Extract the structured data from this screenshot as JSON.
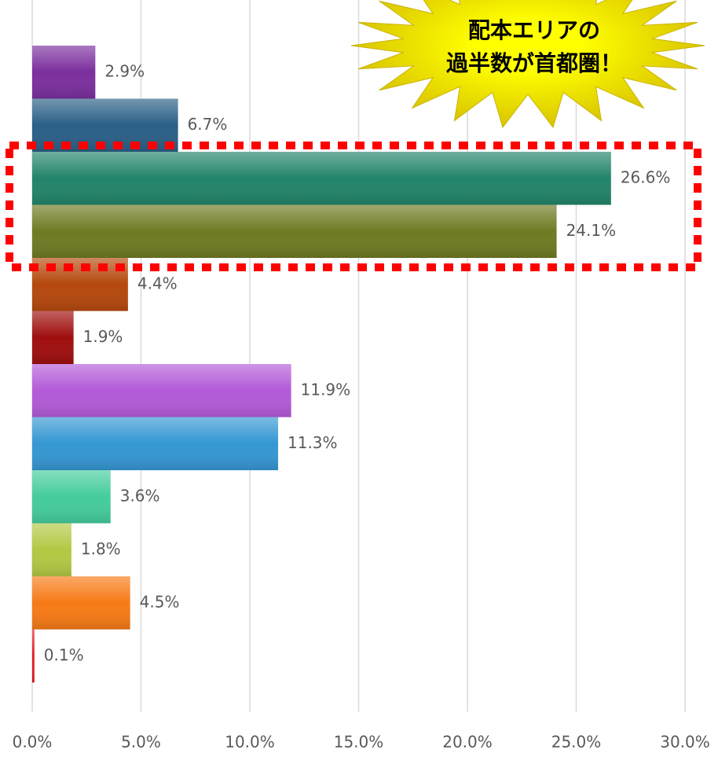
{
  "chart_data": {
    "type": "bar",
    "orientation": "horizontal",
    "annotation": [
      "配本エリアの",
      "過半数が首都圏！"
    ],
    "categories": [
      null,
      null,
      null,
      null,
      null,
      null,
      null,
      null,
      null,
      null,
      null,
      null
    ],
    "values": [
      2.9,
      6.7,
      26.6,
      24.1,
      4.4,
      1.9,
      11.9,
      11.3,
      3.6,
      1.8,
      4.5,
      0.1
    ],
    "value_labels": [
      "2.9%",
      "6.7%",
      "26.6%",
      "24.1%",
      "4.4%",
      "1.9%",
      "11.9%",
      "11.3%",
      "3.6%",
      "1.8%",
      "4.5%",
      "0.1%"
    ],
    "colors": [
      "#7b2f9e",
      "#2a5f86",
      "#22846a",
      "#6f7a22",
      "#b5480d",
      "#a00e0e",
      "#b35ad8",
      "#3497d3",
      "#44cc9c",
      "#b3c843",
      "#f77a16",
      "#e8161e"
    ],
    "xlim": [
      0,
      30
    ],
    "xticks": [
      {
        "value": 0,
        "label": "0.0%"
      },
      {
        "value": 5,
        "label": "5.0%"
      },
      {
        "value": 10,
        "label": "10.0%"
      },
      {
        "value": 15,
        "label": "15.0%"
      },
      {
        "value": 20,
        "label": "20.0%"
      },
      {
        "value": 25,
        "label": "25.0%"
      },
      {
        "value": 30,
        "label": "30.0%"
      }
    ],
    "grid": true
  }
}
